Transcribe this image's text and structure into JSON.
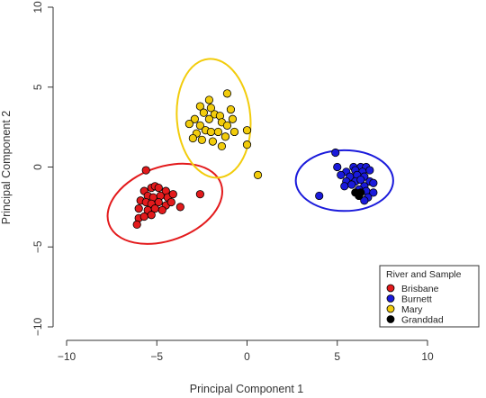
{
  "chart_data": {
    "type": "scatter",
    "title": "",
    "xlabel": "Principal Component 1",
    "ylabel": "Principal Component 2",
    "xlim": [
      -10,
      10
    ],
    "ylim": [
      -10,
      10
    ],
    "xticks": [
      -10,
      -5,
      0,
      5,
      10
    ],
    "yticks": [
      -10,
      -5,
      0,
      5,
      10
    ],
    "xtick_labels": [
      "−10",
      "−5",
      "0",
      "5",
      "10"
    ],
    "ytick_labels": [
      "−10",
      "−5",
      "0",
      "5",
      "10"
    ],
    "grid": false,
    "legend": {
      "title": "River and Sample",
      "placement": "bottom-right"
    },
    "series": [
      {
        "name": "Brisbane",
        "color": "#e31a1c",
        "ellipse": {
          "cx": -4.55,
          "cy": -2.3,
          "rx": 3.3,
          "ry": 2.3,
          "angle": 20
        },
        "points": [
          [
            -5.6,
            -0.2
          ],
          [
            -2.6,
            -1.7
          ],
          [
            -5.7,
            -1.5
          ],
          [
            -5.3,
            -1.3
          ],
          [
            -5.1,
            -1.2
          ],
          [
            -4.9,
            -1.3
          ],
          [
            -4.5,
            -1.5
          ],
          [
            -5.5,
            -1.8
          ],
          [
            -5.2,
            -1.9
          ],
          [
            -4.8,
            -1.8
          ],
          [
            -4.4,
            -1.9
          ],
          [
            -4.1,
            -1.7
          ],
          [
            -5.9,
            -2.1
          ],
          [
            -5.6,
            -2.2
          ],
          [
            -5.3,
            -2.3
          ],
          [
            -4.9,
            -2.2
          ],
          [
            -4.5,
            -2.4
          ],
          [
            -4.2,
            -2.2
          ],
          [
            -5.5,
            -2.7
          ],
          [
            -5.1,
            -2.6
          ],
          [
            -3.7,
            -2.5
          ],
          [
            -6.0,
            -2.6
          ],
          [
            -4.7,
            -2.7
          ],
          [
            -6.0,
            -3.2
          ],
          [
            -5.7,
            -3.1
          ],
          [
            -5.3,
            -3.0
          ],
          [
            -6.1,
            -3.6
          ]
        ]
      },
      {
        "name": "Burnett",
        "color": "#1a1adb",
        "ellipse": {
          "cx": 5.4,
          "cy": -0.85,
          "rx": 2.7,
          "ry": 1.9,
          "angle": 0
        },
        "points": [
          [
            4.9,
            0.9
          ],
          [
            5.0,
            0.0
          ],
          [
            5.9,
            0.0
          ],
          [
            6.3,
            0.0
          ],
          [
            6.6,
            0.0
          ],
          [
            5.5,
            -0.3
          ],
          [
            6.0,
            -0.2
          ],
          [
            6.4,
            -0.3
          ],
          [
            6.8,
            -0.2
          ],
          [
            5.2,
            -0.5
          ],
          [
            5.7,
            -0.6
          ],
          [
            6.1,
            -0.5
          ],
          [
            6.5,
            -0.6
          ],
          [
            5.5,
            -0.9
          ],
          [
            6.0,
            -0.9
          ],
          [
            6.3,
            -0.8
          ],
          [
            6.8,
            -0.9
          ],
          [
            5.4,
            -1.2
          ],
          [
            5.8,
            -1.1
          ],
          [
            6.5,
            -1.2
          ],
          [
            7.0,
            -1.0
          ],
          [
            6.2,
            -1.4
          ],
          [
            6.6,
            -1.5
          ],
          [
            7.0,
            -1.6
          ],
          [
            4.0,
            -1.8
          ],
          [
            6.7,
            -1.9
          ],
          [
            6.5,
            -2.1
          ]
        ]
      },
      {
        "name": "Mary",
        "color": "#f2cc0c",
        "ellipse": {
          "cx": -1.85,
          "cy": 3.05,
          "rx": 3.3,
          "ry": 2.3,
          "angle": 95
        },
        "points": [
          [
            -1.1,
            4.6
          ],
          [
            -2.1,
            4.2
          ],
          [
            -2.6,
            3.8
          ],
          [
            -2.0,
            3.7
          ],
          [
            -0.9,
            3.6
          ],
          [
            -2.4,
            3.4
          ],
          [
            -1.8,
            3.3
          ],
          [
            -1.5,
            3.2
          ],
          [
            -2.9,
            3.0
          ],
          [
            -2.1,
            3.0
          ],
          [
            -0.8,
            3.0
          ],
          [
            -3.2,
            2.7
          ],
          [
            -2.6,
            2.6
          ],
          [
            -1.4,
            2.8
          ],
          [
            -1.1,
            2.6
          ],
          [
            -2.3,
            2.3
          ],
          [
            -2.0,
            2.2
          ],
          [
            -1.6,
            2.2
          ],
          [
            -0.7,
            2.2
          ],
          [
            -2.8,
            2.1
          ],
          [
            -1.2,
            1.9
          ],
          [
            0.0,
            2.3
          ],
          [
            -3.0,
            1.8
          ],
          [
            -2.5,
            1.7
          ],
          [
            -1.9,
            1.6
          ],
          [
            -1.4,
            1.3
          ],
          [
            0.0,
            1.4
          ],
          [
            0.6,
            -0.5
          ]
        ]
      },
      {
        "name": "Granddad",
        "color": "#000000",
        "ellipse": null,
        "points": [
          [
            6.0,
            -1.6
          ],
          [
            6.3,
            -1.6
          ],
          [
            6.2,
            -1.8
          ]
        ]
      }
    ]
  }
}
